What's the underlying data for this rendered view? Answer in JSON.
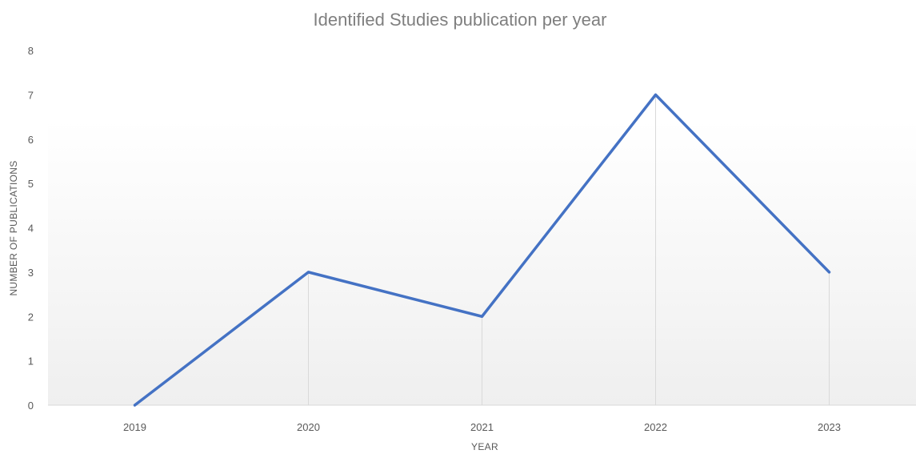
{
  "chart_data": {
    "type": "line",
    "title": "Identified Studies publication per year",
    "xlabel": "YEAR",
    "ylabel": "NUMBER OF PUBLICATIONS",
    "categories": [
      "2019",
      "2020",
      "2021",
      "2022",
      "2023"
    ],
    "series": [
      {
        "values": [
          0,
          3,
          2,
          7,
          3
        ]
      }
    ],
    "ylim": [
      0,
      8
    ],
    "yticks": [
      0,
      1,
      2,
      3,
      4,
      5,
      6,
      7,
      8
    ],
    "drop_lines": true,
    "grid": false,
    "legend": "none",
    "colors": {
      "line": "#4472c4",
      "drop_line": "#d9d9d9",
      "axis": "#d9d9d9",
      "background_gradient_top": "#ffffff",
      "background_gradient_bottom": "#efefef"
    }
  }
}
